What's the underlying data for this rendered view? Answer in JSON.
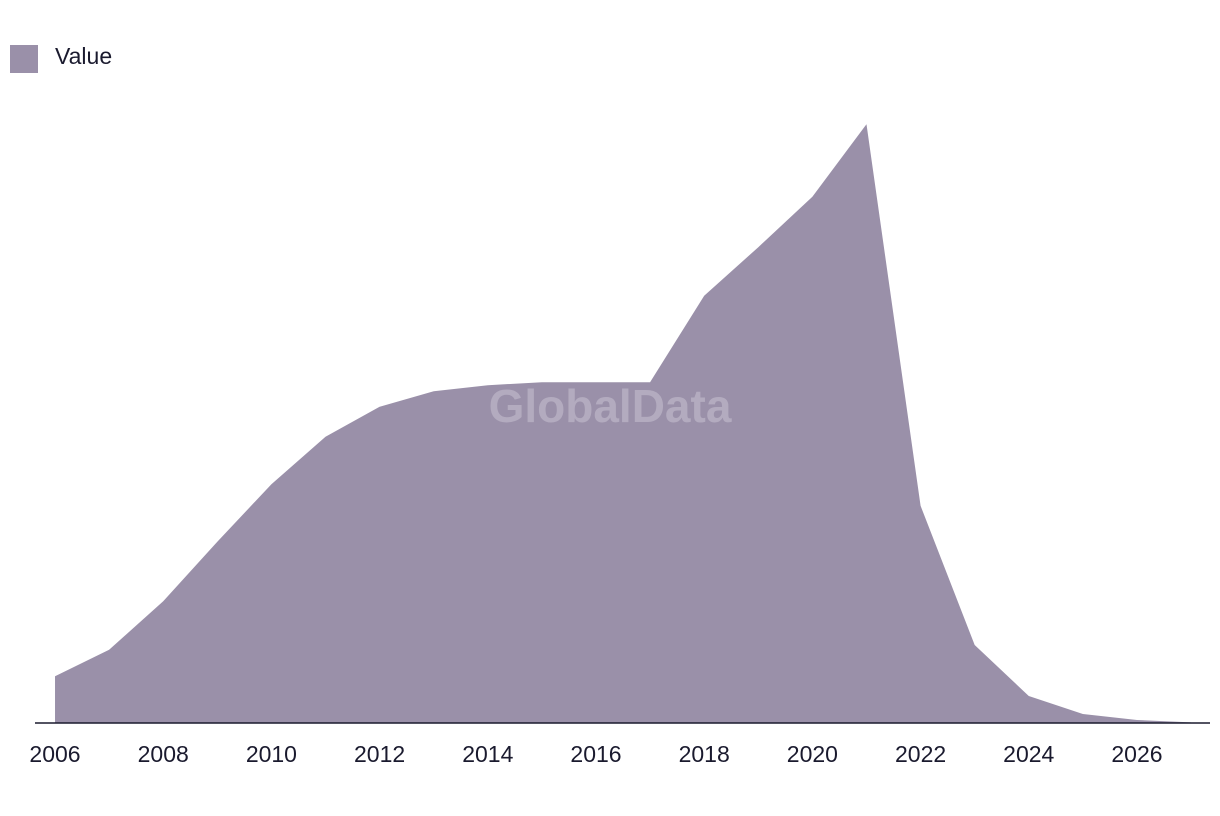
{
  "chart_data": {
    "type": "area",
    "watermark": "GlobalData",
    "x": [
      2006,
      2007,
      2008,
      2009,
      2010,
      2011,
      2012,
      2013,
      2014,
      2015,
      2016,
      2017,
      2018,
      2019,
      2020,
      2021,
      2022,
      2023,
      2024,
      2025,
      2026,
      2027
    ],
    "series": [
      {
        "name": "Value",
        "color": "#9a90a9",
        "values": [
          7.8,
          12.2,
          20.3,
          30.2,
          39.8,
          47.7,
          52.7,
          55.3,
          56.3,
          56.8,
          56.8,
          56.8,
          71.2,
          79.3,
          87.7,
          99.8,
          36.2,
          13,
          4.5,
          1.5,
          0.5,
          0.1
        ]
      }
    ],
    "xlim": [
      2005.63,
      2027.35
    ],
    "xticks": [
      2006,
      2008,
      2010,
      2012,
      2014,
      2016,
      2018,
      2020,
      2022,
      2024,
      2026
    ],
    "ylim": [
      0,
      100
    ],
    "legend": "top-left"
  }
}
